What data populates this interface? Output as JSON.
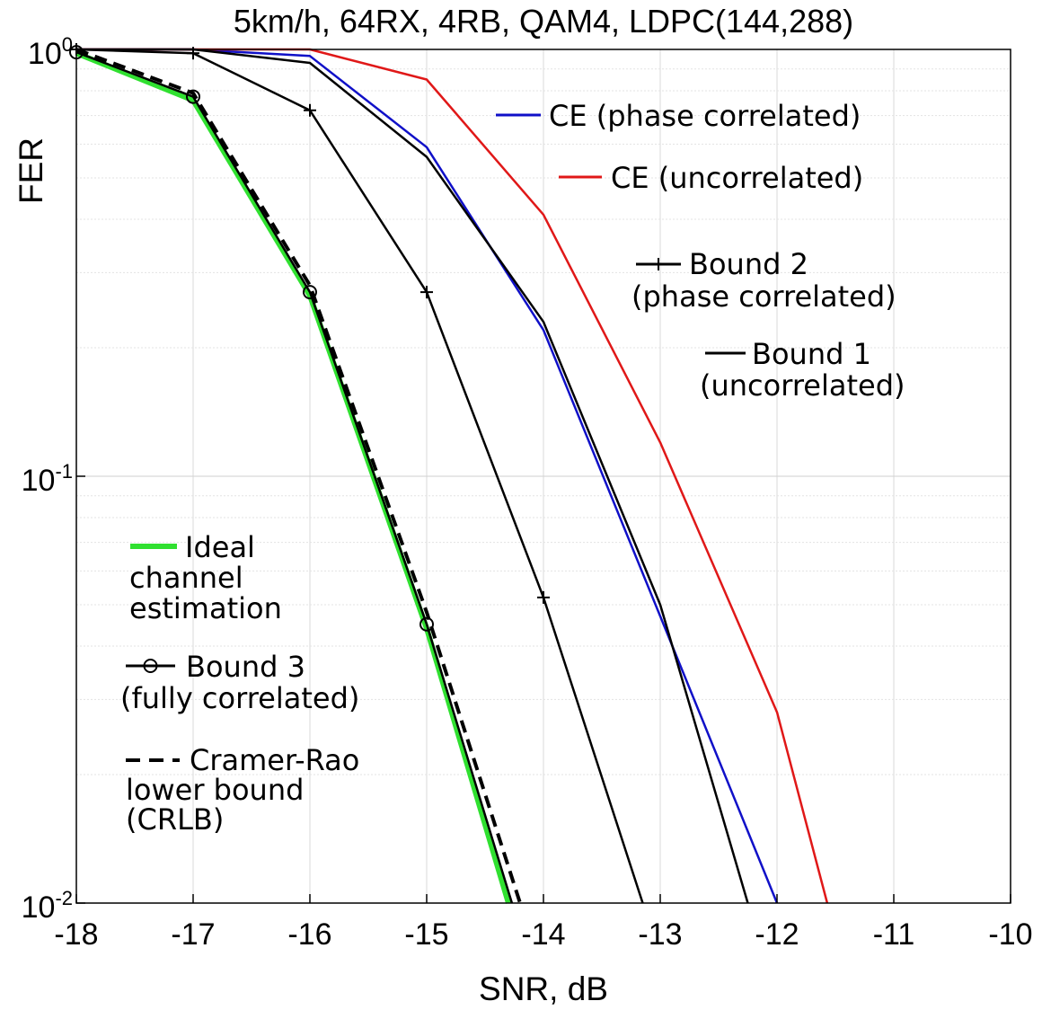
{
  "chart_data": {
    "type": "line",
    "title": "5km/h, 64RX, 4RB, QAM4, LDPC(144,288)",
    "xlabel": "SNR, dB",
    "ylabel": "FER",
    "xlim": [
      -18,
      -10
    ],
    "ylim": [
      0.01,
      1
    ],
    "yscale": "log",
    "grid": true,
    "x_ticks": [
      -18,
      -17,
      -16,
      -15,
      -14,
      -13,
      -12,
      -11,
      -10
    ],
    "x_tick_labels": [
      "-18",
      "-17",
      "-16",
      "-15",
      "-14",
      "-13",
      "-12",
      "-11",
      "-10"
    ],
    "y_ticks": [
      1,
      0.1,
      0.01
    ],
    "y_tick_labels": [
      {
        "base": "10",
        "exp": "0"
      },
      {
        "base": "10",
        "exp": "-1"
      },
      {
        "base": "10",
        "exp": "-2"
      }
    ],
    "series": [
      {
        "name": "CE (phase correlated)",
        "color": "#1010c8",
        "dash": "solid",
        "marker": "none",
        "points": [
          [
            -18,
            1.0
          ],
          [
            -17,
            1.0
          ],
          [
            -16,
            0.965
          ],
          [
            -15,
            0.59
          ],
          [
            -14,
            0.22
          ],
          [
            -13,
            0.047
          ],
          [
            -12,
            0.01
          ]
        ]
      },
      {
        "name": "CE (uncorrelated)",
        "color": "#e01818",
        "dash": "solid",
        "marker": "none",
        "points": [
          [
            -18,
            1.0
          ],
          [
            -17,
            1.0
          ],
          [
            -16,
            1.0
          ],
          [
            -15,
            0.85
          ],
          [
            -14,
            0.41
          ],
          [
            -13,
            0.12
          ],
          [
            -12,
            0.028
          ],
          [
            -11.57,
            0.01
          ]
        ]
      },
      {
        "name": "Bound 2 (phase correlated)",
        "color": "#000000",
        "dash": "solid",
        "marker": "plus",
        "points": [
          [
            -18,
            1.0
          ],
          [
            -17,
            0.98
          ],
          [
            -16,
            0.72
          ],
          [
            -15,
            0.27
          ],
          [
            -14,
            0.052
          ],
          [
            -13.15,
            0.01
          ]
        ]
      },
      {
        "name": "Bound 1 (uncorrelated)",
        "color": "#000000",
        "dash": "solid",
        "marker": "none",
        "points": [
          [
            -18,
            1.0
          ],
          [
            -17,
            1.0
          ],
          [
            -16,
            0.93
          ],
          [
            -15,
            0.56
          ],
          [
            -14,
            0.23
          ],
          [
            -13,
            0.05
          ],
          [
            -12.25,
            0.01
          ]
        ]
      },
      {
        "name": "Ideal channel estimation",
        "color": "#30e030",
        "dash": "solid",
        "marker": "none",
        "width": 6,
        "points": [
          [
            -18,
            0.98
          ],
          [
            -17,
            0.76
          ],
          [
            -16,
            0.265
          ],
          [
            -15,
            0.044
          ],
          [
            -14.3,
            0.01
          ]
        ]
      },
      {
        "name": "Bound 3 (fully correlated)",
        "color": "#000000",
        "dash": "solid",
        "marker": "circle",
        "points": [
          [
            -18,
            0.985
          ],
          [
            -17,
            0.775
          ],
          [
            -16,
            0.27
          ],
          [
            -15,
            0.045
          ],
          [
            -14.27,
            0.01
          ]
        ]
      },
      {
        "name": "Cramer-Rao lower bound (CRLB)",
        "color": "#000000",
        "dash": "dashed",
        "marker": "none",
        "width": 4,
        "points": [
          [
            -18,
            1.0
          ],
          [
            -17,
            0.79
          ],
          [
            -16,
            0.28
          ],
          [
            -15,
            0.048
          ],
          [
            -14.2,
            0.01
          ]
        ]
      }
    ],
    "legend": [
      {
        "id": "ce-phase",
        "lines": [
          "CE (phase correlated)"
        ],
        "color": "#1010c8",
        "symbol": "line"
      },
      {
        "id": "ce-uncorr",
        "lines": [
          "CE (uncorrelated)"
        ],
        "color": "#e01818",
        "symbol": "line"
      },
      {
        "id": "bound2",
        "lines": [
          "Bound 2",
          "(phase correlated)"
        ],
        "color": "#000000",
        "symbol": "plus"
      },
      {
        "id": "bound1",
        "lines": [
          "Bound 1",
          "(uncorrelated)"
        ],
        "color": "#000000",
        "symbol": "line"
      },
      {
        "id": "ideal",
        "lines": [
          "Ideal",
          "channel",
          "estimation"
        ],
        "color": "#30e030",
        "symbol": "line"
      },
      {
        "id": "bound3",
        "lines": [
          "Bound 3",
          "(fully correlated)"
        ],
        "color": "#000000",
        "symbol": "circle"
      },
      {
        "id": "crlb",
        "lines": [
          "Cramer-Rao",
          "lower bound",
          "(CRLB)"
        ],
        "color": "#000000",
        "symbol": "dash"
      }
    ]
  }
}
